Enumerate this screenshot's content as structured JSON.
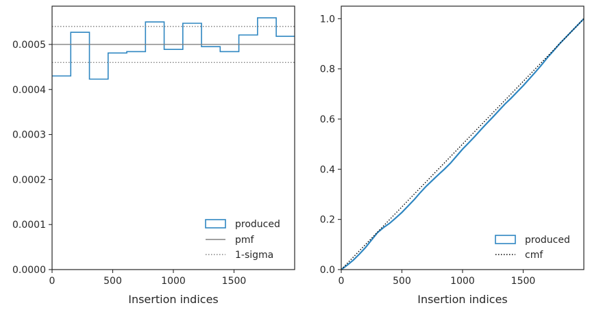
{
  "chart_data": [
    {
      "type": "step",
      "title": "",
      "xlabel": "Insertion indices",
      "ylabel": "",
      "xlim": [
        0,
        2000
      ],
      "ylim": [
        0,
        0.000585
      ],
      "xticks": [
        0,
        500,
        1000,
        1500
      ],
      "xtick_labels": [
        "0",
        "500",
        "1000",
        "1500"
      ],
      "yticks": [
        0,
        0.0001,
        0.0002,
        0.0003,
        0.0004,
        0.0005
      ],
      "ytick_labels": [
        "0.0000",
        "0.0001",
        "0.0002",
        "0.0003",
        "0.0004",
        "0.0005"
      ],
      "legend_position": "bottom-right",
      "series": [
        {
          "name": "produced",
          "kind": "histogram-step",
          "color": "#2e86c1",
          "bin_edges": [
            0,
            154,
            308,
            462,
            616,
            770,
            924,
            1078,
            1232,
            1386,
            1540,
            1694,
            1848,
            2000
          ],
          "values": [
            0.00043,
            0.000527,
            0.000423,
            0.000481,
            0.000484,
            0.00055,
            0.000489,
            0.000547,
            0.000495,
            0.000484,
            0.000521,
            0.000559,
            0.000518
          ]
        },
        {
          "name": "pmf",
          "kind": "hline",
          "color": "#808080",
          "y": 0.0005
        },
        {
          "name": "1-sigma",
          "kind": "hline-dotted",
          "color": "#808080",
          "y_values": [
            0.00046,
            0.00054
          ]
        }
      ]
    },
    {
      "type": "line",
      "title": "",
      "xlabel": "Insertion indices",
      "ylabel": "",
      "xlim": [
        0,
        2000
      ],
      "ylim": [
        0,
        1.05
      ],
      "xticks": [
        0,
        500,
        1000,
        1500
      ],
      "xtick_labels": [
        "0",
        "500",
        "1000",
        "1500"
      ],
      "yticks": [
        0,
        0.2,
        0.4,
        0.6,
        0.8,
        1.0
      ],
      "ytick_labels": [
        "0.0",
        "0.2",
        "0.4",
        "0.6",
        "0.8",
        "1.0"
      ],
      "legend_position": "bottom-right",
      "series": [
        {
          "name": "produced",
          "kind": "ecdf",
          "color": "#2e86c1",
          "x": [
            0,
            50,
            100,
            150,
            200,
            250,
            300,
            350,
            400,
            450,
            500,
            550,
            600,
            650,
            700,
            750,
            800,
            850,
            900,
            950,
            1000,
            1050,
            1100,
            1150,
            1200,
            1250,
            1300,
            1350,
            1400,
            1450,
            1500,
            1550,
            1600,
            1650,
            1700,
            1750,
            1800,
            1850,
            1900,
            1950,
            2000
          ],
          "y": [
            0,
            0.018,
            0.038,
            0.062,
            0.088,
            0.118,
            0.148,
            0.168,
            0.185,
            0.206,
            0.228,
            0.253,
            0.278,
            0.306,
            0.332,
            0.355,
            0.378,
            0.4,
            0.424,
            0.452,
            0.48,
            0.505,
            0.53,
            0.557,
            0.583,
            0.608,
            0.634,
            0.66,
            0.683,
            0.708,
            0.733,
            0.76,
            0.787,
            0.815,
            0.845,
            0.872,
            0.9,
            0.925,
            0.95,
            0.975,
            1.0
          ]
        },
        {
          "name": "cmf",
          "kind": "line-dotted",
          "color": "#000000",
          "x": [
            0,
            2000
          ],
          "y": [
            0,
            1.0
          ]
        }
      ]
    }
  ]
}
